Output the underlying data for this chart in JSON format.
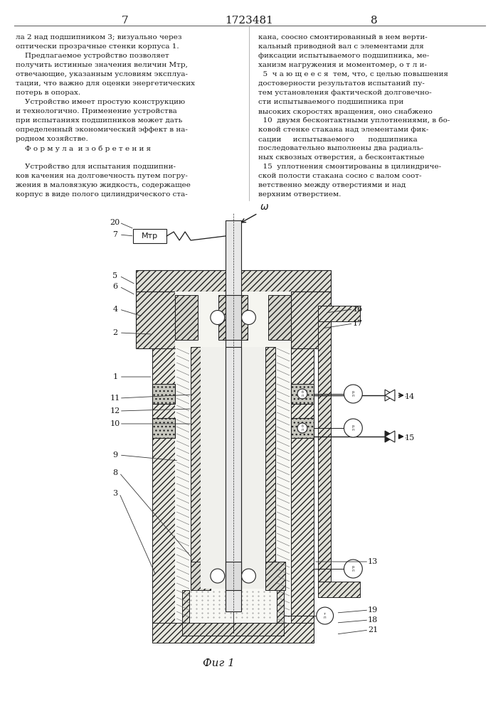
{
  "page_number_left": "7",
  "patent_number": "1723481",
  "page_number_right": "8",
  "col1_text": [
    "ла 2 над подшипником 3; визуально через",
    "оптически прозрачные стенки корпуса 1.",
    "    Предлагаемое устройство позволяет",
    "получить истинные значения величин Мтр,",
    "отвечающие, указанным условиям эксплуа-",
    "тации, что важно для оценки энергетических",
    "потерь в опорах.",
    "    Устройство имеет простую конструкцию",
    "и технологично. Применение устройства",
    "при испытаниях подшипников может дать",
    "определенный экономический эффект в на-",
    "родном хозяйстве.",
    "    Ф о р м у л а  и з о б р е т е н и я",
    "",
    "    Устройство для испытания подшипни-",
    "ков качения на долговечность путем погру-",
    "жения в маловязкую жидкость, содержащее",
    "корпус в виде полого цилиндрического ста-"
  ],
  "col2_text": [
    "кана, соосно смонтированный в нем верти-",
    "кальный приводной вал с элементами для",
    "фиксации испытываемого подшипника, ме-",
    "ханизм нагружения и моментомер, о т л и-",
    "  5  ч а ю щ е е с я  тем, что, с целью повышения",
    "достоверности результатов испытаний пу-",
    "тем установления фактической долговечно-",
    "сти испытываемого подшипника при",
    "высоких скоростях вращения, оно снабжено",
    "  10  двумя бесконтактными уплотнениями, в бо-",
    "ковой стенке стакана над элементами фик-",
    "сации     испытываемого      подшипника",
    "последовательно выполнены два радиаль-",
    "ных сквозных отверстия, а бесконтактные",
    "  15  уплотнения смонтированы в цилиндриче-",
    "ской полости стакана сосно с валом соот-",
    "ветственно между отверстиями и над",
    "верхним отверстием."
  ],
  "fig_label": "Фиг 1",
  "bg_color": "#ffffff",
  "text_color": "#1a1a1a",
  "hatch_color": "#333333",
  "line_color": "#1a1a1a"
}
